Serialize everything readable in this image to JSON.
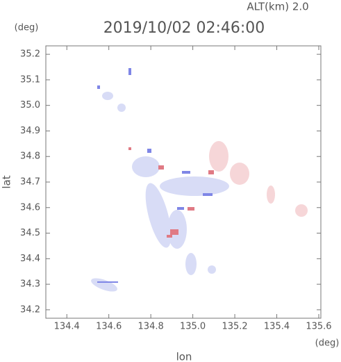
{
  "chart_data": {
    "type": "map",
    "title": "2019/10/02 02:46:00",
    "altitude": "ALT(km)  2.0",
    "x_label": "lon",
    "y_label": "lat",
    "x_unit": "(deg)",
    "y_unit": "(deg)",
    "xlim": [
      134.3,
      135.61
    ],
    "ylim": [
      34.167,
      35.233
    ],
    "xticks": [
      134.4,
      134.6,
      134.8,
      {
        "value": 135.0,
        "label": "135.0"
      },
      135.2,
      135.4,
      135.6
    ],
    "yticks": [
      34.2,
      34.3,
      34.4,
      34.5,
      34.6,
      34.7,
      34.8,
      34.9,
      {
        "value": 35.0,
        "label": "35.0"
      },
      35.1,
      35.2
    ]
  }
}
